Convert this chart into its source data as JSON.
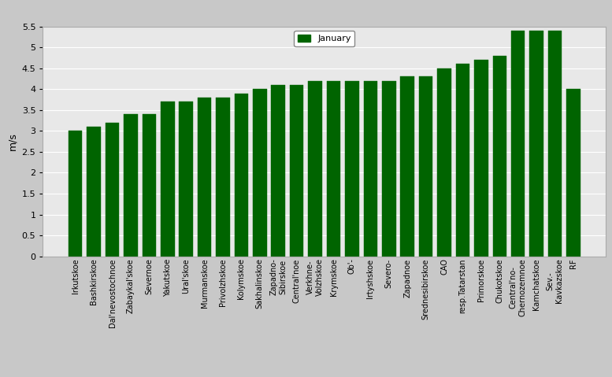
{
  "categories": [
    "Irkutskoe",
    "Bashkirskoe",
    "Dal'nevostochnoe",
    "Zabaykal'skoe",
    "Severnoe",
    "Yakutskoe",
    "Ural'skoe",
    "Murmanskoe",
    "Privolzhskoe",
    "Kolymskoe",
    "Sakhalinskoe",
    "Zapadno-\nSibirskoe",
    "Central'noe",
    "Verkhne-\nVolzhskoe",
    "Krymskoe",
    "Ob'-",
    "Irtyshskoe",
    "Severo-",
    "Zapadnoe",
    "Srednesibirskoe",
    "CAO",
    "resp.Tatarstan",
    "Primorskoe",
    "Chukotskoe",
    "Central'no-\nChernozemnoe",
    "Kamchatskoe",
    "Sev.-\nKavkazskoe",
    "RF"
  ],
  "values": [
    3.0,
    3.1,
    3.2,
    3.4,
    3.4,
    3.7,
    3.7,
    3.8,
    3.8,
    3.9,
    4.0,
    4.1,
    4.1,
    4.2,
    4.2,
    4.2,
    4.2,
    4.2,
    4.3,
    4.3,
    4.5,
    4.6,
    4.7,
    4.8,
    5.4,
    5.4,
    5.4,
    4.0
  ],
  "bar_color": "#006400",
  "ylabel": "m/s",
  "ylim": [
    0,
    5.5
  ],
  "yticks": [
    0,
    0.5,
    1.0,
    1.5,
    2.0,
    2.5,
    3.0,
    3.5,
    4.0,
    4.5,
    5.0,
    5.5
  ],
  "legend_label": "January",
  "legend_color": "#006400",
  "fig_bg_color": "#c8c8c8",
  "plot_bg_color": "#e8e8e8",
  "tick_fontsize": 7,
  "ylabel_fontsize": 9
}
